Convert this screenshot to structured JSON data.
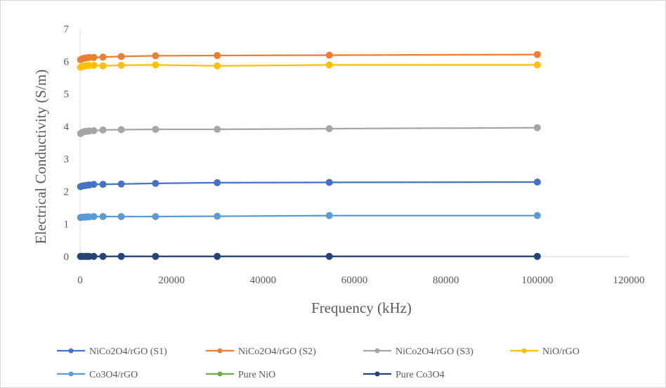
{
  "chart_data": {
    "type": "line",
    "xlabel": "Frequency  (kHz)",
    "ylabel": "Electrical  Conductivity  (S/m)",
    "xlim": [
      0,
      120000
    ],
    "ylim": [
      0,
      7
    ],
    "xticks": [
      0,
      20000,
      40000,
      60000,
      80000,
      100000,
      120000
    ],
    "yticks": [
      0,
      1,
      2,
      3,
      4,
      5,
      6,
      7
    ],
    "grid": false,
    "legend_position": "bottom",
    "x": [
      100,
      500,
      1000,
      1500,
      2000,
      3000,
      5000,
      9000,
      16500,
      30000,
      54500,
      100000
    ],
    "series": [
      {
        "name": "NiCo2O4/rGO (S1)",
        "color": "#4472C4",
        "values": [
          2.15,
          2.17,
          2.18,
          2.19,
          2.2,
          2.22,
          2.22,
          2.23,
          2.25,
          2.27,
          2.28,
          2.29
        ]
      },
      {
        "name": "NiCo2O4/rGO (S2)",
        "color": "#ED7D31",
        "values": [
          6.05,
          6.08,
          6.1,
          6.11,
          6.12,
          6.12,
          6.13,
          6.15,
          6.17,
          6.18,
          6.19,
          6.21
        ]
      },
      {
        "name": "NiCo2O4/rGO (S3)",
        "color": "#A5A5A5",
        "values": [
          3.78,
          3.82,
          3.84,
          3.85,
          3.86,
          3.87,
          3.89,
          3.9,
          3.91,
          3.91,
          3.93,
          3.96
        ]
      },
      {
        "name": "NiO/rGO",
        "color": "#FFC000",
        "values": [
          5.82,
          5.84,
          5.86,
          5.87,
          5.87,
          5.88,
          5.86,
          5.88,
          5.89,
          5.86,
          5.89,
          5.89
        ]
      },
      {
        "name": "Co3O4/rGO",
        "color": "#5B9BD5",
        "values": [
          1.2,
          1.21,
          1.21,
          1.22,
          1.22,
          1.23,
          1.23,
          1.23,
          1.23,
          1.24,
          1.26,
          1.26
        ]
      },
      {
        "name": "Pure NiO",
        "color": "#70AD47",
        "values": [
          0.005,
          0.005,
          0.005,
          0.005,
          0.005,
          0.005,
          0.005,
          0.005,
          0.005,
          0.005,
          0.005,
          0.005
        ]
      },
      {
        "name": "Pure Co3O4",
        "color": "#264478",
        "values": [
          0.005,
          0.005,
          0.005,
          0.005,
          0.005,
          0.005,
          0.005,
          0.005,
          0.005,
          0.005,
          0.005,
          0.005
        ]
      }
    ]
  }
}
